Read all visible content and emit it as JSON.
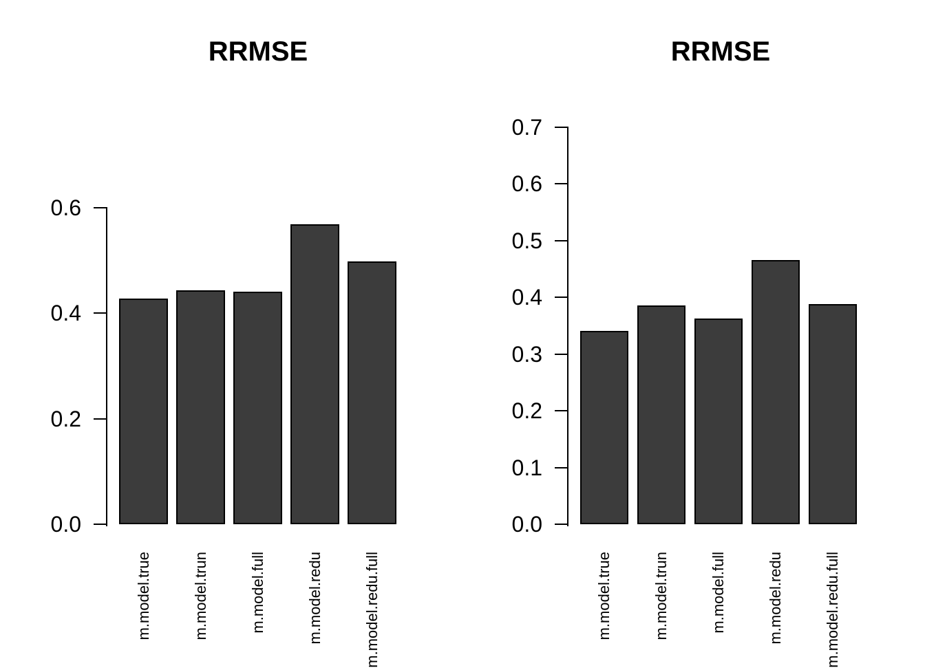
{
  "colors": {
    "background": "#ffffff",
    "bar_fill": "#3c3c3c",
    "bar_border": "#000000",
    "axis": "#000000",
    "text": "#000000"
  },
  "chart_data": [
    {
      "type": "bar",
      "title": "RRMSE",
      "categories": [
        "m.model.true",
        "m.model.trun",
        "m.model.full",
        "m.model.redu",
        "m.model.redu.full"
      ],
      "values": [
        0.427,
        0.443,
        0.44,
        0.568,
        0.498
      ],
      "xlabel": "",
      "ylabel": "",
      "ylim": [
        0.0,
        0.6
      ],
      "yticks": [
        0.0,
        0.2,
        0.4,
        0.6
      ],
      "ytick_labels": [
        "0.0",
        "0.2",
        "0.4",
        "0.6"
      ],
      "grid": false,
      "legend": "none",
      "bar_orientation": "vertical",
      "category_label_rotation_deg": 90
    },
    {
      "type": "bar",
      "title": "RRMSE",
      "categories": [
        "m.model.true",
        "m.model.trun",
        "m.model.full",
        "m.model.redu",
        "m.model.redu.full"
      ],
      "values": [
        0.34,
        0.385,
        0.362,
        0.465,
        0.388
      ],
      "xlabel": "",
      "ylabel": "",
      "ylim": [
        0.0,
        0.7
      ],
      "yticks": [
        0.0,
        0.1,
        0.2,
        0.3,
        0.4,
        0.5,
        0.6,
        0.7
      ],
      "ytick_labels": [
        "0.0",
        "0.1",
        "0.2",
        "0.3",
        "0.4",
        "0.5",
        "0.6",
        "0.7"
      ],
      "grid": false,
      "legend": "none",
      "bar_orientation": "vertical",
      "category_label_rotation_deg": 90
    }
  ]
}
